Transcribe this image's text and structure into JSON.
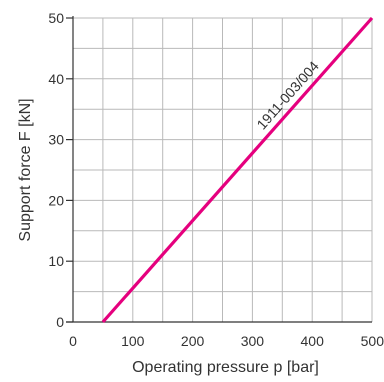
{
  "chart_data": {
    "type": "line",
    "xlabel": "Operating pressure p [bar]",
    "ylabel": "Support force F [kN]",
    "xlim": [
      0,
      500
    ],
    "ylim": [
      0,
      50
    ],
    "x_ticks": [
      {
        "value": 0,
        "label": "0"
      },
      {
        "value": 100,
        "label": "100"
      },
      {
        "value": 200,
        "label": "200"
      },
      {
        "value": 300,
        "label": "300"
      },
      {
        "value": 400,
        "label": "400"
      },
      {
        "value": 500,
        "label": "500"
      }
    ],
    "y_ticks": [
      {
        "value": 0,
        "label": "0"
      },
      {
        "value": 10,
        "label": "10"
      },
      {
        "value": 20,
        "label": "20"
      },
      {
        "value": 30,
        "label": "30"
      },
      {
        "value": 40,
        "label": "40"
      },
      {
        "value": 50,
        "label": "50"
      }
    ],
    "x_grid_step": 50,
    "y_grid_step": 5,
    "grid": true,
    "series": [
      {
        "name": "1911-003/004",
        "color": "#e5007e",
        "x": [
          50,
          500
        ],
        "y": [
          0,
          50
        ]
      }
    ]
  }
}
